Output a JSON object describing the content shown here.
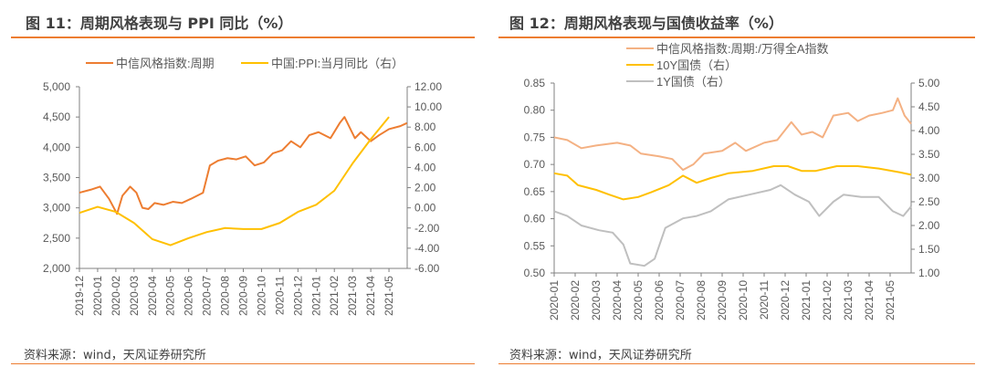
{
  "chart_data": [
    {
      "type": "line",
      "title": "图 11：周期风格表现与 PPI 同比（%）",
      "source": "资料来源：wind，天风证券研究所",
      "xlim": [
        "2019-12",
        "2021-05"
      ],
      "x_ticks": [
        "2019-12",
        "2020-01",
        "2020-02",
        "2020-03",
        "2020-04",
        "2020-05",
        "2020-06",
        "2020-07",
        "2020-08",
        "2020-09",
        "2020-10",
        "2020-11",
        "2020-12",
        "2021-01",
        "2021-02",
        "2021-03",
        "2021-04",
        "2021-05"
      ],
      "y_left": {
        "ylim": [
          2000,
          5000
        ],
        "ticks": [
          "2,000",
          "2,500",
          "3,000",
          "3,500",
          "4,000",
          "4,500",
          "5,000"
        ]
      },
      "y_right": {
        "ylim": [
          -6,
          12
        ],
        "ticks": [
          "-6.00",
          "-4.00",
          "-2.00",
          "0.00",
          "2.00",
          "4.00",
          "6.00",
          "8.00",
          "10.00",
          "12.00"
        ]
      },
      "legend_placement": "top",
      "series": [
        {
          "name": "中信风格指数:周期",
          "axis": "left",
          "color": "#ED7D31",
          "points": [
            [
              "2019-12-01",
              3250
            ],
            [
              "2019-12-20",
              3300
            ],
            [
              "2020-01-05",
              3350
            ],
            [
              "2020-01-20",
              3150
            ],
            [
              "2020-02-03",
              2900
            ],
            [
              "2020-02-12",
              3200
            ],
            [
              "2020-02-25",
              3350
            ],
            [
              "2020-03-05",
              3250
            ],
            [
              "2020-03-15",
              3000
            ],
            [
              "2020-03-25",
              2980
            ],
            [
              "2020-04-05",
              3080
            ],
            [
              "2020-04-20",
              3050
            ],
            [
              "2020-05-05",
              3100
            ],
            [
              "2020-05-20",
              3080
            ],
            [
              "2020-06-05",
              3150
            ],
            [
              "2020-06-25",
              3250
            ],
            [
              "2020-07-06",
              3700
            ],
            [
              "2020-07-20",
              3780
            ],
            [
              "2020-08-05",
              3820
            ],
            [
              "2020-08-20",
              3800
            ],
            [
              "2020-09-05",
              3850
            ],
            [
              "2020-09-20",
              3700
            ],
            [
              "2020-10-05",
              3750
            ],
            [
              "2020-10-20",
              3900
            ],
            [
              "2020-11-05",
              3950
            ],
            [
              "2020-11-20",
              4100
            ],
            [
              "2020-12-05",
              4000
            ],
            [
              "2020-12-20",
              4200
            ],
            [
              "2021-01-05",
              4250
            ],
            [
              "2021-01-25",
              4150
            ],
            [
              "2021-02-10",
              4400
            ],
            [
              "2021-02-18",
              4500
            ],
            [
              "2021-03-05",
              4150
            ],
            [
              "2021-03-15",
              4250
            ],
            [
              "2021-04-01",
              4100
            ],
            [
              "2021-04-15",
              4200
            ],
            [
              "2021-05-01",
              4300
            ],
            [
              "2021-05-20",
              4350
            ],
            [
              "2021-05-31",
              4400
            ]
          ]
        },
        {
          "name": "中国:PPI:当月同比（右）",
          "axis": "right",
          "color": "#FFC000",
          "points": [
            [
              "2019-12-01",
              -0.5
            ],
            [
              "2020-01-01",
              0.1
            ],
            [
              "2020-02-01",
              -0.4
            ],
            [
              "2020-03-01",
              -1.5
            ],
            [
              "2020-04-01",
              -3.1
            ],
            [
              "2020-05-01",
              -3.7
            ],
            [
              "2020-06-01",
              -3.0
            ],
            [
              "2020-07-01",
              -2.4
            ],
            [
              "2020-08-01",
              -2.0
            ],
            [
              "2020-09-01",
              -2.1
            ],
            [
              "2020-10-01",
              -2.1
            ],
            [
              "2020-11-01",
              -1.5
            ],
            [
              "2020-12-01",
              -0.4
            ],
            [
              "2021-01-01",
              0.3
            ],
            [
              "2021-02-01",
              1.7
            ],
            [
              "2021-03-01",
              4.4
            ],
            [
              "2021-04-01",
              6.8
            ],
            [
              "2021-05-01",
              9.0
            ]
          ]
        }
      ]
    },
    {
      "type": "line",
      "title": "图 12：周期风格表现与国债收益率（%）",
      "source": "资料来源：wind，天风证券研究所",
      "xlim": [
        "2020-01",
        "2021-05"
      ],
      "x_ticks": [
        "2020-01",
        "2020-02",
        "2020-03",
        "2020-04",
        "2020-05",
        "2020-06",
        "2020-07",
        "2020-08",
        "2020-09",
        "2020-10",
        "2020-11",
        "2020-12",
        "2021-01",
        "2021-02",
        "2021-03",
        "2021-04",
        "2021-05"
      ],
      "y_left": {
        "ylim": [
          0.5,
          0.85
        ],
        "ticks": [
          "0.50",
          "0.55",
          "0.60",
          "0.65",
          "0.70",
          "0.75",
          "0.80",
          "0.85"
        ]
      },
      "y_right": {
        "ylim": [
          1,
          5
        ],
        "ticks": [
          "1.00",
          "1.50",
          "2.00",
          "2.50",
          "3.00",
          "3.50",
          "4.00",
          "4.50",
          "5.00"
        ]
      },
      "legend_placement": "top",
      "series": [
        {
          "name": "中信风格指数:周期:/万得全A指数",
          "axis": "left",
          "color": "#F4B183",
          "points": [
            [
              "2020-01-01",
              0.75
            ],
            [
              "2020-01-20",
              0.745
            ],
            [
              "2020-02-10",
              0.73
            ],
            [
              "2020-03-01",
              0.735
            ],
            [
              "2020-04-01",
              0.74
            ],
            [
              "2020-04-20",
              0.735
            ],
            [
              "2020-05-05",
              0.72
            ],
            [
              "2020-06-01",
              0.715
            ],
            [
              "2020-06-20",
              0.71
            ],
            [
              "2020-07-05",
              0.69
            ],
            [
              "2020-07-20",
              0.7
            ],
            [
              "2020-08-05",
              0.72
            ],
            [
              "2020-09-01",
              0.725
            ],
            [
              "2020-09-20",
              0.74
            ],
            [
              "2020-10-05",
              0.725
            ],
            [
              "2020-11-01",
              0.74
            ],
            [
              "2020-11-20",
              0.745
            ],
            [
              "2020-12-10",
              0.778
            ],
            [
              "2020-12-25",
              0.755
            ],
            [
              "2021-01-10",
              0.76
            ],
            [
              "2021-01-25",
              0.75
            ],
            [
              "2021-02-10",
              0.79
            ],
            [
              "2021-03-01",
              0.795
            ],
            [
              "2021-03-15",
              0.78
            ],
            [
              "2021-04-01",
              0.79
            ],
            [
              "2021-04-20",
              0.795
            ],
            [
              "2021-05-05",
              0.8
            ],
            [
              "2021-05-12",
              0.822
            ],
            [
              "2021-05-22",
              0.79
            ],
            [
              "2021-06-01",
              0.775
            ]
          ]
        },
        {
          "name": "10Y国债（右）",
          "axis": "right",
          "color": "#FFC000",
          "points": [
            [
              "2020-01-01",
              3.1
            ],
            [
              "2020-01-20",
              3.05
            ],
            [
              "2020-02-05",
              2.85
            ],
            [
              "2020-03-01",
              2.75
            ],
            [
              "2020-03-20",
              2.65
            ],
            [
              "2020-04-10",
              2.55
            ],
            [
              "2020-05-01",
              2.6
            ],
            [
              "2020-05-20",
              2.7
            ],
            [
              "2020-06-15",
              2.85
            ],
            [
              "2020-07-05",
              3.05
            ],
            [
              "2020-07-25",
              2.9
            ],
            [
              "2020-08-15",
              3.0
            ],
            [
              "2020-09-10",
              3.1
            ],
            [
              "2020-10-15",
              3.15
            ],
            [
              "2020-11-15",
              3.25
            ],
            [
              "2020-12-05",
              3.25
            ],
            [
              "2020-12-25",
              3.15
            ],
            [
              "2021-01-15",
              3.15
            ],
            [
              "2021-02-15",
              3.25
            ],
            [
              "2021-03-15",
              3.25
            ],
            [
              "2021-04-15",
              3.2
            ],
            [
              "2021-05-15",
              3.12
            ],
            [
              "2021-06-01",
              3.07
            ]
          ]
        },
        {
          "name": "1Y国债（右）",
          "axis": "right",
          "color": "#BFBFBF",
          "points": [
            [
              "2020-01-01",
              2.3
            ],
            [
              "2020-01-20",
              2.2
            ],
            [
              "2020-02-10",
              2.0
            ],
            [
              "2020-03-05",
              1.9
            ],
            [
              "2020-03-25",
              1.85
            ],
            [
              "2020-04-10",
              1.6
            ],
            [
              "2020-04-20",
              1.2
            ],
            [
              "2020-05-10",
              1.15
            ],
            [
              "2020-05-25",
              1.3
            ],
            [
              "2020-06-10",
              1.95
            ],
            [
              "2020-07-05",
              2.15
            ],
            [
              "2020-07-25",
              2.2
            ],
            [
              "2020-08-15",
              2.3
            ],
            [
              "2020-09-10",
              2.55
            ],
            [
              "2020-10-10",
              2.65
            ],
            [
              "2020-11-10",
              2.75
            ],
            [
              "2020-11-25",
              2.85
            ],
            [
              "2020-12-15",
              2.65
            ],
            [
              "2021-01-05",
              2.5
            ],
            [
              "2021-01-20",
              2.2
            ],
            [
              "2021-02-10",
              2.5
            ],
            [
              "2021-02-25",
              2.65
            ],
            [
              "2021-03-20",
              2.6
            ],
            [
              "2021-04-15",
              2.6
            ],
            [
              "2021-05-05",
              2.3
            ],
            [
              "2021-05-20",
              2.2
            ],
            [
              "2021-06-01",
              2.4
            ]
          ]
        }
      ]
    }
  ]
}
